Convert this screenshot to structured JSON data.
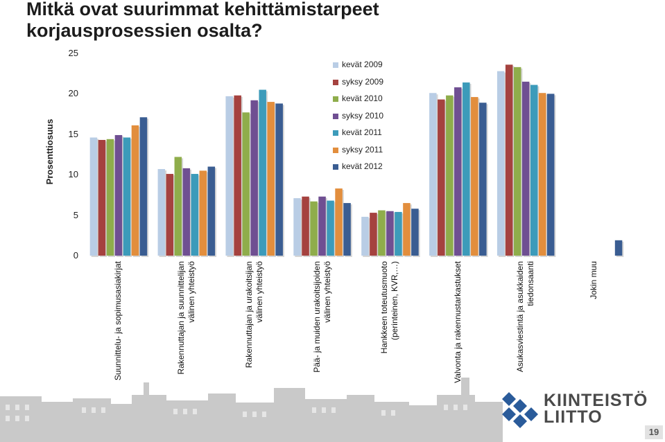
{
  "slide": {
    "title_line1": "Mitkä ovat suurimmat kehittämistarpeet",
    "title_line2": "korjausprosessien osalta?",
    "page_number": "19",
    "logo_line1": "KIINTEISTÖ",
    "logo_line2": "LIITTO"
  },
  "chart_data": {
    "type": "bar",
    "ylabel": "Prosenttiosuus",
    "ylim": [
      0,
      25
    ],
    "yticks": [
      "0",
      "5",
      "10",
      "15",
      "20",
      "25"
    ],
    "legend_position": "top-center",
    "grid": false,
    "categories": [
      [
        "Suunnittelu- ja sopimusasiakirjat"
      ],
      [
        "Rakennuttajan ja suunnittelijan",
        "välinen yhteistyö"
      ],
      [
        "Rakennuttajan ja urakoitsijan",
        "välinen yhteistyö"
      ],
      [
        "Pää- ja muiden urakoitsijoiden",
        "välinen yhteistyö"
      ],
      [
        "Hankkeen toteutusmuoto",
        "(perinteinen, KVR,…)"
      ],
      [
        "Valvonta ja rakennustarkastukset"
      ],
      [
        "Asukasviestintä ja asukkaiden",
        "tiedonsaanti"
      ],
      [
        "Jokin muu"
      ]
    ],
    "series": [
      {
        "name": "kevät 2009",
        "color": "#b9cde5",
        "values": [
          14.6,
          10.7,
          19.7,
          7.1,
          4.8,
          20.1,
          22.8,
          null
        ]
      },
      {
        "name": "syksy 2009",
        "color": "#a5423f",
        "values": [
          14.3,
          10.1,
          19.8,
          7.3,
          5.3,
          19.3,
          23.6,
          null
        ]
      },
      {
        "name": "kevät 2010",
        "color": "#8fad4b",
        "values": [
          14.4,
          12.2,
          17.7,
          6.7,
          5.6,
          19.8,
          23.3,
          null
        ]
      },
      {
        "name": "syksy 2010",
        "color": "#6f4f92",
        "values": [
          14.9,
          10.8,
          19.2,
          7.3,
          5.5,
          20.8,
          21.5,
          null
        ]
      },
      {
        "name": "kevät 2011",
        "color": "#3c9bba",
        "values": [
          14.6,
          10.1,
          20.5,
          6.8,
          5.4,
          21.4,
          21.1,
          null
        ]
      },
      {
        "name": "syksy 2011",
        "color": "#e28e3d",
        "values": [
          16.1,
          10.5,
          19.0,
          8.3,
          6.5,
          19.6,
          20.1,
          null
        ]
      },
      {
        "name": "kevät 2012",
        "color": "#3a5d92",
        "values": [
          17.1,
          11.0,
          18.8,
          6.5,
          5.8,
          18.9,
          20.0,
          1.9
        ]
      }
    ]
  }
}
